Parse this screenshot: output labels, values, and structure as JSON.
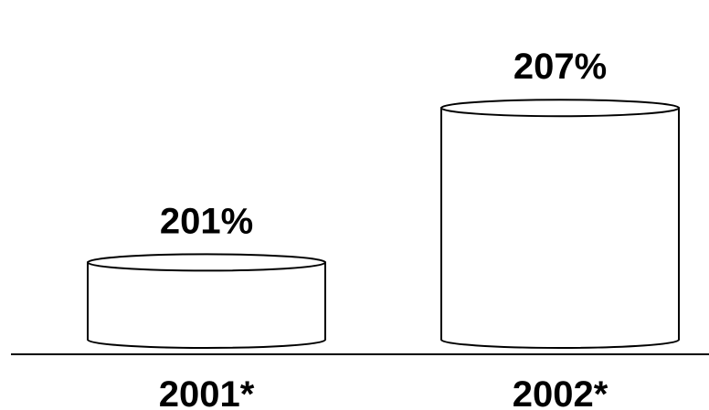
{
  "chart_data": {
    "type": "bar",
    "style": "3d-cylinder",
    "categories": [
      "2001*",
      "2002*"
    ],
    "values": [
      201,
      207
    ],
    "data_labels": [
      "201%",
      "207%"
    ],
    "title": "",
    "xlabel": "",
    "ylabel": "",
    "ylim": [
      198,
      208
    ],
    "grid": false,
    "legend": "none",
    "colors": {
      "fill": "#ffffff",
      "stroke": "#000000",
      "baseline": "#000000"
    }
  }
}
